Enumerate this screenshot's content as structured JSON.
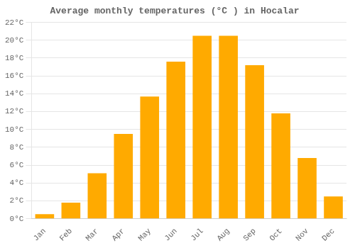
{
  "chart_data": {
    "type": "bar",
    "title": "Average monthly temperatures (°C ) in Hocalar",
    "categories": [
      "Jan",
      "Feb",
      "Mar",
      "Apr",
      "May",
      "Jun",
      "Jul",
      "Aug",
      "Sep",
      "Oct",
      "Nov",
      "Dec"
    ],
    "values": [
      0.5,
      1.8,
      5.1,
      9.5,
      13.7,
      17.6,
      20.5,
      20.5,
      17.2,
      11.8,
      6.8,
      2.5
    ],
    "color": "#FFAA00",
    "ylim": [
      0,
      22
    ],
    "yticks": [
      {
        "value": 0,
        "label": "0°C"
      },
      {
        "value": 2,
        "label": "2°C"
      },
      {
        "value": 4,
        "label": "4°C"
      },
      {
        "value": 6,
        "label": "6°C"
      },
      {
        "value": 8,
        "label": "8°C"
      },
      {
        "value": 10,
        "label": "10°C"
      },
      {
        "value": 12,
        "label": "12°C"
      },
      {
        "value": 14,
        "label": "14°C"
      },
      {
        "value": 16,
        "label": "16°C"
      },
      {
        "value": 18,
        "label": "18°C"
      },
      {
        "value": 20,
        "label": "20°C"
      },
      {
        "value": 22,
        "label": "22°C"
      }
    ],
    "grid": true
  }
}
